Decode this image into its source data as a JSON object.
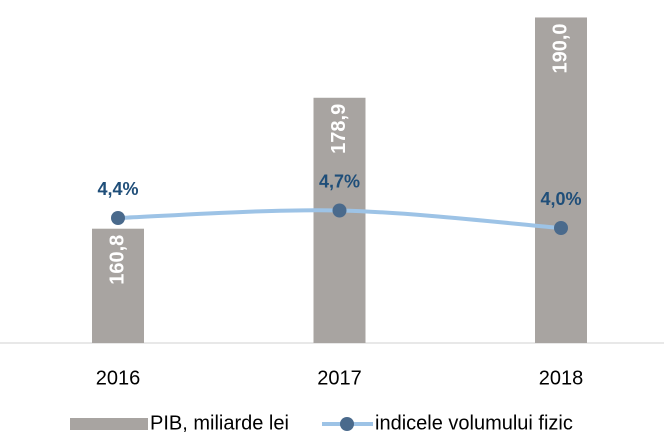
{
  "chart_data": {
    "type": "bar",
    "categories": [
      "2016",
      "2017",
      "2018"
    ],
    "series": [
      {
        "name": "PIB, miliarde lei",
        "type": "bar",
        "color": "#a8a4a1",
        "values": [
          160.8,
          178.9,
          190.0
        ],
        "value_labels": [
          "160,8",
          "178,9",
          "190,0"
        ]
      },
      {
        "name": "indicele volumului fizic",
        "type": "line",
        "axis": "y2",
        "color": "#9dc3e6",
        "marker_color": "#4a6a8c",
        "values": [
          4.4,
          4.7,
          4.0
        ],
        "value_labels": [
          "4,4%",
          "4,7%",
          "4,0%"
        ]
      }
    ],
    "ylim": [
      145,
      192
    ],
    "y2lim": [
      -0.6,
      13.0
    ],
    "legend": "bottom"
  }
}
